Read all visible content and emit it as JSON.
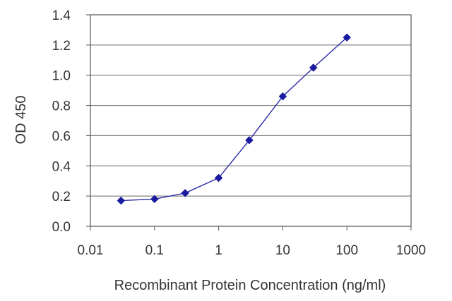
{
  "chart_data": {
    "type": "line",
    "title": "",
    "xlabel": "Recombinant Protein Concentration (ng/ml)",
    "ylabel": "OD 450",
    "x_scale": "log",
    "xlim": [
      0.01,
      1000
    ],
    "ylim": [
      0.0,
      1.4
    ],
    "x_ticks": [
      "0.01",
      "0.1",
      "1",
      "10",
      "100",
      "1000"
    ],
    "y_ticks": [
      "0.0",
      "0.2",
      "0.4",
      "0.6",
      "0.8",
      "1.0",
      "1.2",
      "1.4"
    ],
    "grid": "horizontal",
    "legend": "none",
    "series": [
      {
        "color": "#2a2aa8",
        "x": [
          0.03,
          0.1,
          0.3,
          1,
          3,
          10,
          30,
          100
        ],
        "y": [
          0.17,
          0.18,
          0.22,
          0.32,
          0.57,
          0.86,
          1.05,
          1.25
        ]
      }
    ]
  }
}
